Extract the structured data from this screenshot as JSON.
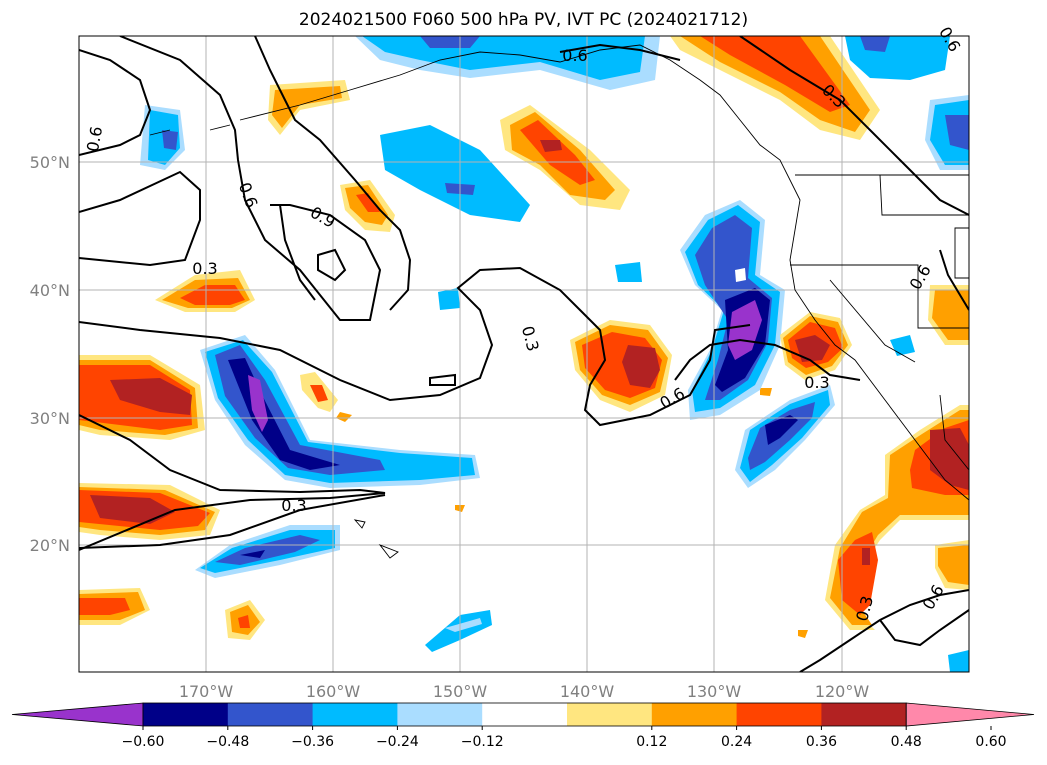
{
  "title": "2024021500 F060 500 hPa PV, IVT PC (2024021712)",
  "axes": {
    "lon_ticks": [
      "170°W",
      "160°W",
      "150°W",
      "140°W",
      "130°W",
      "120°W"
    ],
    "lat_ticks": [
      "50°N",
      "40°N",
      "30°N",
      "20°N"
    ]
  },
  "colorbar": {
    "ticks": [
      "−0.60",
      "−0.48",
      "−0.36",
      "−0.24",
      "−0.12",
      "0.12",
      "0.24",
      "0.36",
      "0.48",
      "0.60"
    ],
    "colors": [
      "#9933cc",
      "#000088",
      "#3355cc",
      "#00bbff",
      "#aaddff",
      "#ffffff",
      "#ffe680",
      "#ffa000",
      "#ff4400",
      "#b22222",
      "#ff88aa"
    ]
  },
  "contour_labels": [
    "0.6",
    "0.6",
    "0.3",
    "0.9",
    "0.6",
    "0.3",
    "0.3",
    "0.6",
    "0.3",
    "0.6",
    "0.3",
    "0.6",
    "0.6",
    "0.3"
  ],
  "palette": {
    "purple": "#9933cc",
    "navy": "#000088",
    "blue": "#3355cc",
    "cyan": "#00bbff",
    "light_blue": "#aaddff",
    "yellow": "#ffe680",
    "orange": "#ffa000",
    "red_orange": "#ff4400",
    "dark_red": "#b22222"
  }
}
